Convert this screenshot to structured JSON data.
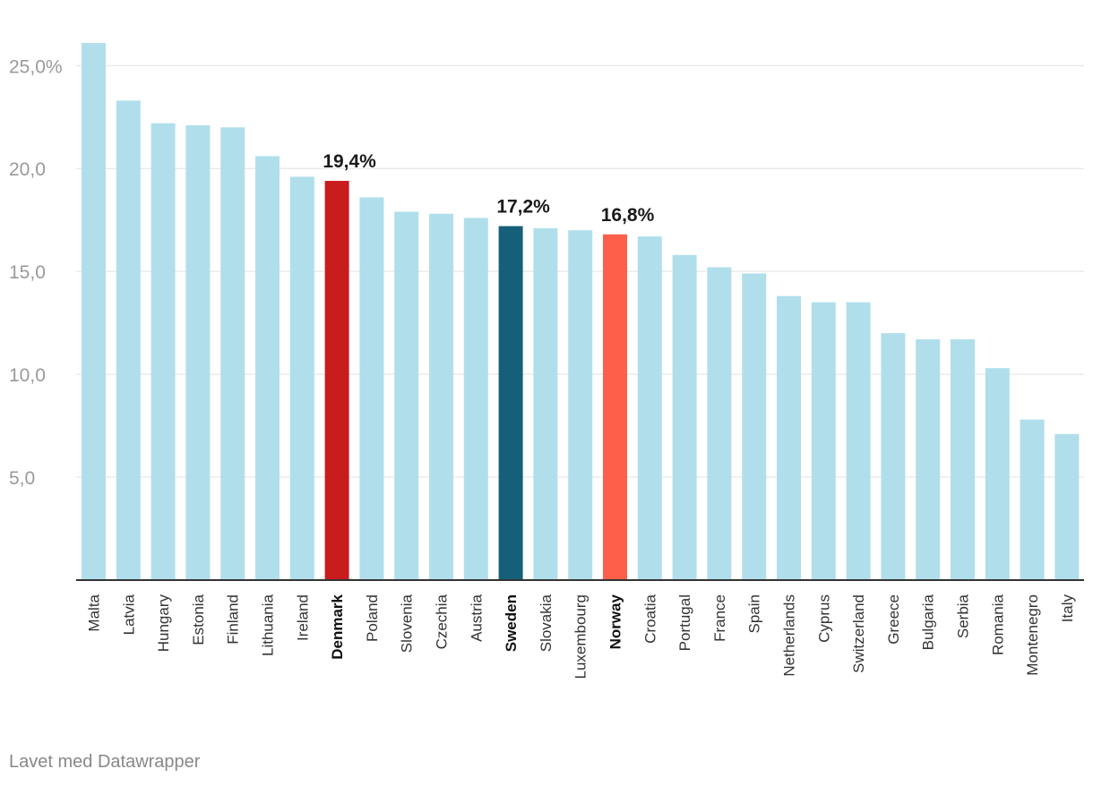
{
  "chart_data": {
    "type": "bar",
    "categories": [
      "Malta",
      "Latvia",
      "Hungary",
      "Estonia",
      "Finland",
      "Lithuania",
      "Ireland",
      "Denmark",
      "Poland",
      "Slovenia",
      "Czechia",
      "Austria",
      "Sweden",
      "Slovakia",
      "Luxembourg",
      "Norway",
      "Croatia",
      "Portugal",
      "France",
      "Spain",
      "Netherlands",
      "Cyprus",
      "Switzerland",
      "Greece",
      "Bulgaria",
      "Serbia",
      "Romania",
      "Montenegro",
      "Italy"
    ],
    "values": [
      26.1,
      23.3,
      22.2,
      22.1,
      22.0,
      20.6,
      19.6,
      19.4,
      18.6,
      17.9,
      17.8,
      17.6,
      17.2,
      17.1,
      17.0,
      16.8,
      16.7,
      15.8,
      15.2,
      14.9,
      13.8,
      13.5,
      13.5,
      12.0,
      11.7,
      11.7,
      10.3,
      7.8,
      7.1
    ],
    "ylim": [
      0,
      26.1
    ],
    "yticks": [
      5,
      10,
      15,
      20,
      25
    ],
    "ytick_labels": [
      "5,0",
      "10,0",
      "15,0",
      "20,0",
      "25,0%"
    ],
    "colors": {
      "default": "#b0dfeb",
      "Denmark": "#c91d1d",
      "Sweden": "#156078",
      "Norway": "#fd5f4a",
      "gridline": "#e0e0e0",
      "axis": "#333333"
    },
    "highlighted": [
      "Denmark",
      "Sweden",
      "Norway"
    ],
    "data_labels": [
      {
        "category": "Denmark",
        "text": "19,4%"
      },
      {
        "category": "Sweden",
        "text": "17,2%"
      },
      {
        "category": "Norway",
        "text": "16,8%"
      }
    ],
    "title": "",
    "xlabel": "",
    "ylabel": ""
  },
  "footer": {
    "credit": "Lavet med Datawrapper"
  }
}
